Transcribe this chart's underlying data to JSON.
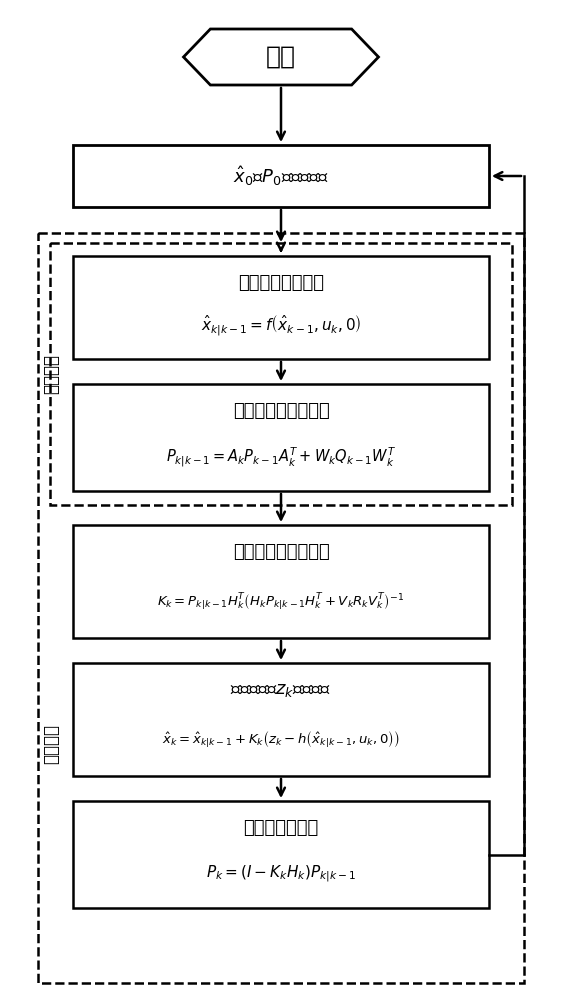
{
  "fig_width": 5.62,
  "fig_height": 10.0,
  "bg_color": "#ffffff",
  "text_color": "#000000",
  "hexagon_label": "开始",
  "box1_label_pre": "$\\hat{x}_0$和$P_0$的初始估计",
  "box2_title": "向前推算状态变量",
  "box2_formula": "$\\hat{x}_{k|k-1} = f\\left(\\hat{x}_{k-1},u_k,0\\right)$",
  "box3_title": "向前推算误差协方差",
  "box3_formula": "$P_{k|k-1} = A_kP_{k-1}A_k^T + W_kQ_{k-1}W_k^T$",
  "box4_title": "计算扩展卡尔曼增益",
  "box4_formula": "$K_k = P_{k|k-1}H_k^T\\left(H_kP_{k|k-1}H_k^T+V_kR_kV_k^T\\right)^{-1}$",
  "box5_title": "由观测变量$z_k$更新估计",
  "box5_formula": "$\\hat{x}_k = \\hat{x}_{k|k-1}+K_k\\left(z_k-h\\left(\\hat{x}_{k|k-1},u_k,0\\right)\\right)$",
  "box6_title": "更新误差协方差",
  "box6_formula": "$P_k = \\left(I - K_kH_k\\right)P_{k|k-1}$",
  "label_time": "时间更新",
  "label_measure": "量测更新"
}
